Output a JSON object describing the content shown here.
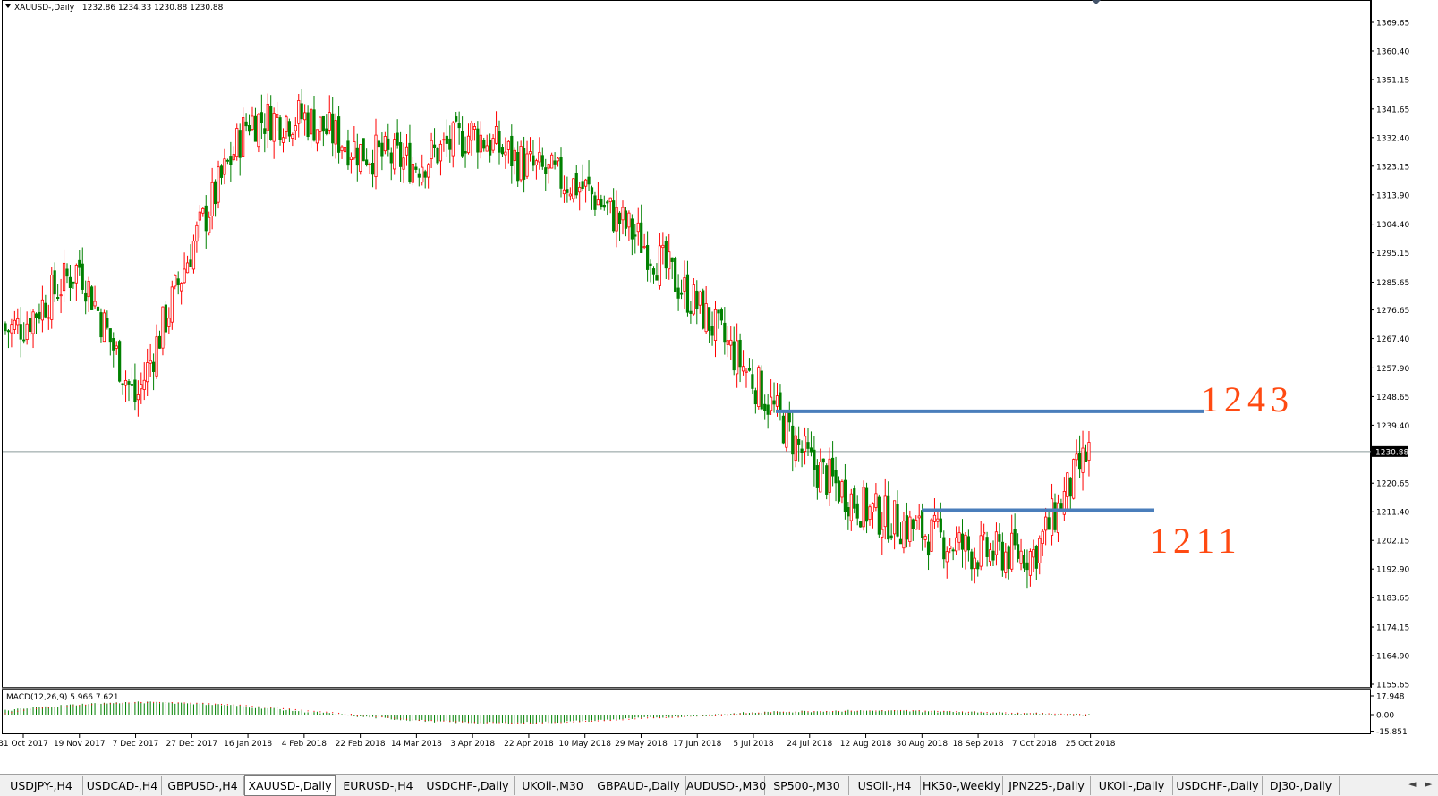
{
  "chart_header": {
    "symbol": "XAUUSD-,Daily",
    "ohlc": "1232.86 1234.33 1230.88 1230.88"
  },
  "macd": {
    "label": "MACD(12,26,9) 5.966 7.621",
    "axis_labels": [
      "17.948",
      "0.00",
      "-15.851"
    ]
  },
  "chart_data": {
    "type": "candlestick",
    "price_axis_labels": [
      "1369.65",
      "1360.40",
      "1351.15",
      "1341.65",
      "1332.40",
      "1323.15",
      "1313.90",
      "1304.40",
      "1295.15",
      "1285.65",
      "1276.65",
      "1267.40",
      "1257.90",
      "1248.65",
      "1239.40",
      "1230.88",
      "1220.65",
      "1211.40",
      "1202.15",
      "1192.90",
      "1183.65",
      "1174.15",
      "1164.90",
      "1155.65"
    ],
    "price_range": [
      1155.65,
      1369.65
    ],
    "current_price": 1230.88,
    "date_labels": [
      "31 Oct 2017",
      "19 Nov 2017",
      "7 Dec 2017",
      "27 Dec 2017",
      "16 Jan 2018",
      "4 Feb 2018",
      "22 Feb 2018",
      "14 Mar 2018",
      "3 Apr 2018",
      "22 Apr 2018",
      "10 May 2018",
      "29 May 2018",
      "17 Jun 2018",
      "5 Jul 2018",
      "24 Jul 2018",
      "12 Aug 2018",
      "30 Aug 2018",
      "18 Sep 2018",
      "7 Oct 2018",
      "25 Oct 2018"
    ],
    "closes_by_date": [
      {
        "date": "31 Oct 2017",
        "close": 1272
      },
      {
        "date": "19 Nov 2017",
        "close": 1291
      },
      {
        "date": "7 Dec 2017",
        "close": 1247
      },
      {
        "date": "27 Dec 2017",
        "close": 1297
      },
      {
        "date": "16 Jan 2018",
        "close": 1338
      },
      {
        "date": "4 Feb 2018",
        "close": 1339
      },
      {
        "date": "22 Feb 2018",
        "close": 1328
      },
      {
        "date": "14 Mar 2018",
        "close": 1324
      },
      {
        "date": "3 Apr 2018",
        "close": 1334
      },
      {
        "date": "22 Apr 2018",
        "close": 1323
      },
      {
        "date": "10 May 2018",
        "close": 1316
      },
      {
        "date": "29 May 2018",
        "close": 1299
      },
      {
        "date": "17 Jun 2018",
        "close": 1278
      },
      {
        "date": "5 Jul 2018",
        "close": 1254
      },
      {
        "date": "24 Jul 2018",
        "close": 1227
      },
      {
        "date": "12 Aug 2018",
        "close": 1212
      },
      {
        "date": "30 Aug 2018",
        "close": 1205
      },
      {
        "date": "18 Sep 2018",
        "close": 1198
      },
      {
        "date": "7 Oct 2018",
        "close": 1198
      },
      {
        "date": "25 Oct 2018",
        "close": 1232
      }
    ],
    "levels": [
      {
        "label": "1243",
        "price": 1243.9,
        "from_date": "5 Jul 2018",
        "color": "#4a7ebb"
      },
      {
        "label": "1211",
        "price": 1211.9,
        "from_date": "30 Aug 2018",
        "color": "#4a7ebb"
      }
    ],
    "colors": {
      "bull": "#ff0000",
      "bear": "#008000",
      "level": "#4a7ebb",
      "level_label": "#ff4a12",
      "macd_hist": "#008000",
      "macd_signal": "#ff0000"
    }
  },
  "tabs": [
    {
      "label": "USDJPY-,H4"
    },
    {
      "label": "USDCAD-,H4"
    },
    {
      "label": "GBPUSD-,H4"
    },
    {
      "label": "XAUUSD-,Daily",
      "active": true
    },
    {
      "label": "EURUSD-,H4"
    },
    {
      "label": "USDCHF-,Daily"
    },
    {
      "label": "UKOil-,M30"
    },
    {
      "label": "GBPAUD-,Daily"
    },
    {
      "label": "AUDUSD-,M30"
    },
    {
      "label": "SP500-,M30"
    },
    {
      "label": "USOil-,H4"
    },
    {
      "label": "HK50-,Weekly"
    },
    {
      "label": "JPN225-,Daily"
    },
    {
      "label": "UKOil-,Daily"
    },
    {
      "label": "USDCHF-,Daily"
    },
    {
      "label": "DJ30-,Daily"
    }
  ],
  "tab_controls": {
    "left": "◄",
    "right": "►"
  }
}
